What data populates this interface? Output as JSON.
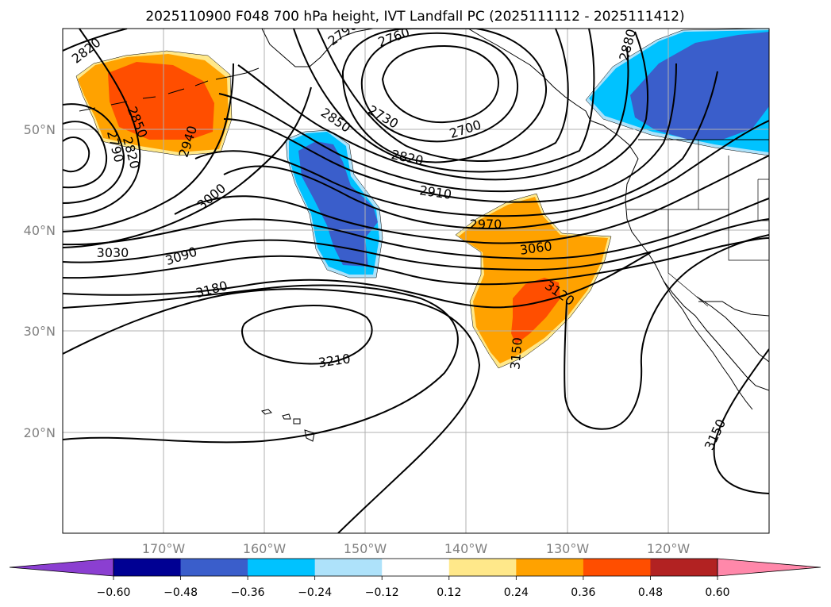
{
  "title": "2025110900 F048 700 hPa height, IVT Landfall PC (2025111112 - 2025111412)",
  "map": {
    "lon_range": [
      -180,
      -110
    ],
    "lat_range": [
      10,
      60
    ],
    "lon_ticks": [
      "170°W",
      "160°W",
      "150°W",
      "140°W",
      "130°W",
      "120°W"
    ],
    "lat_ticks": [
      "50°N",
      "40°N",
      "30°N",
      "20°N"
    ]
  },
  "contour_labels": [
    {
      "id": "2820-nw",
      "text": "2820"
    },
    {
      "id": "2790-n",
      "text": "2790"
    },
    {
      "id": "2760",
      "text": "2760"
    },
    {
      "id": "2880",
      "text": "2880"
    },
    {
      "id": "2850-w",
      "text": "2850"
    },
    {
      "id": "2790-w",
      "text": "2790"
    },
    {
      "id": "2820-w",
      "text": "2820"
    },
    {
      "id": "2940",
      "text": "2940"
    },
    {
      "id": "2850-c",
      "text": "2850"
    },
    {
      "id": "2730",
      "text": "2730"
    },
    {
      "id": "2700",
      "text": "2700"
    },
    {
      "id": "2820-c",
      "text": "2820"
    },
    {
      "id": "2910",
      "text": "2910"
    },
    {
      "id": "3000",
      "text": "3000"
    },
    {
      "id": "2970",
      "text": "2970"
    },
    {
      "id": "3060",
      "text": "3060"
    },
    {
      "id": "3030",
      "text": "3030"
    },
    {
      "id": "3090",
      "text": "3090"
    },
    {
      "id": "3120",
      "text": "3120"
    },
    {
      "id": "3180",
      "text": "3180"
    },
    {
      "id": "3150-c",
      "text": "3150"
    },
    {
      "id": "3210",
      "text": "3210"
    },
    {
      "id": "3150-se",
      "text": "3150"
    }
  ],
  "colorbar": {
    "colors": [
      "#8b3fd1",
      "#000093",
      "#3a5ecb",
      "#00c2ff",
      "#aee2fa",
      "#ffffff",
      "#ffe88a",
      "#ffa200",
      "#ff4e00",
      "#b22222",
      "#ff88aa"
    ],
    "tick_labels": [
      "−0.60",
      "−0.48",
      "−0.36",
      "−0.24",
      "−0.12",
      "0.12",
      "0.24",
      "0.36",
      "0.48",
      "0.60"
    ]
  }
}
